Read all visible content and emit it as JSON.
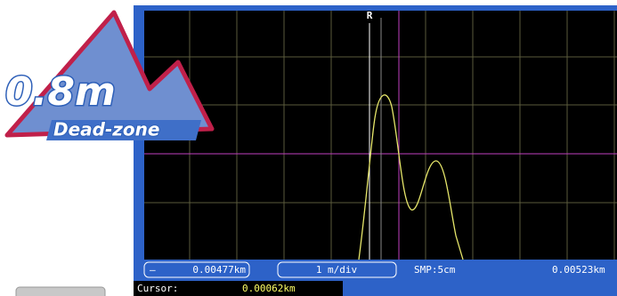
{
  "logo": {
    "distance": "0.8m",
    "caption": "Dead-zone"
  },
  "screen": {
    "marker": "R",
    "left_field": {
      "sign": "–",
      "value": "0.00477km"
    },
    "scale": "1 m/div",
    "sampling": "SMP:5cm",
    "right_value": "0.00523km",
    "cursor": {
      "label": "Cursor:",
      "value": "0.00062km"
    }
  }
}
